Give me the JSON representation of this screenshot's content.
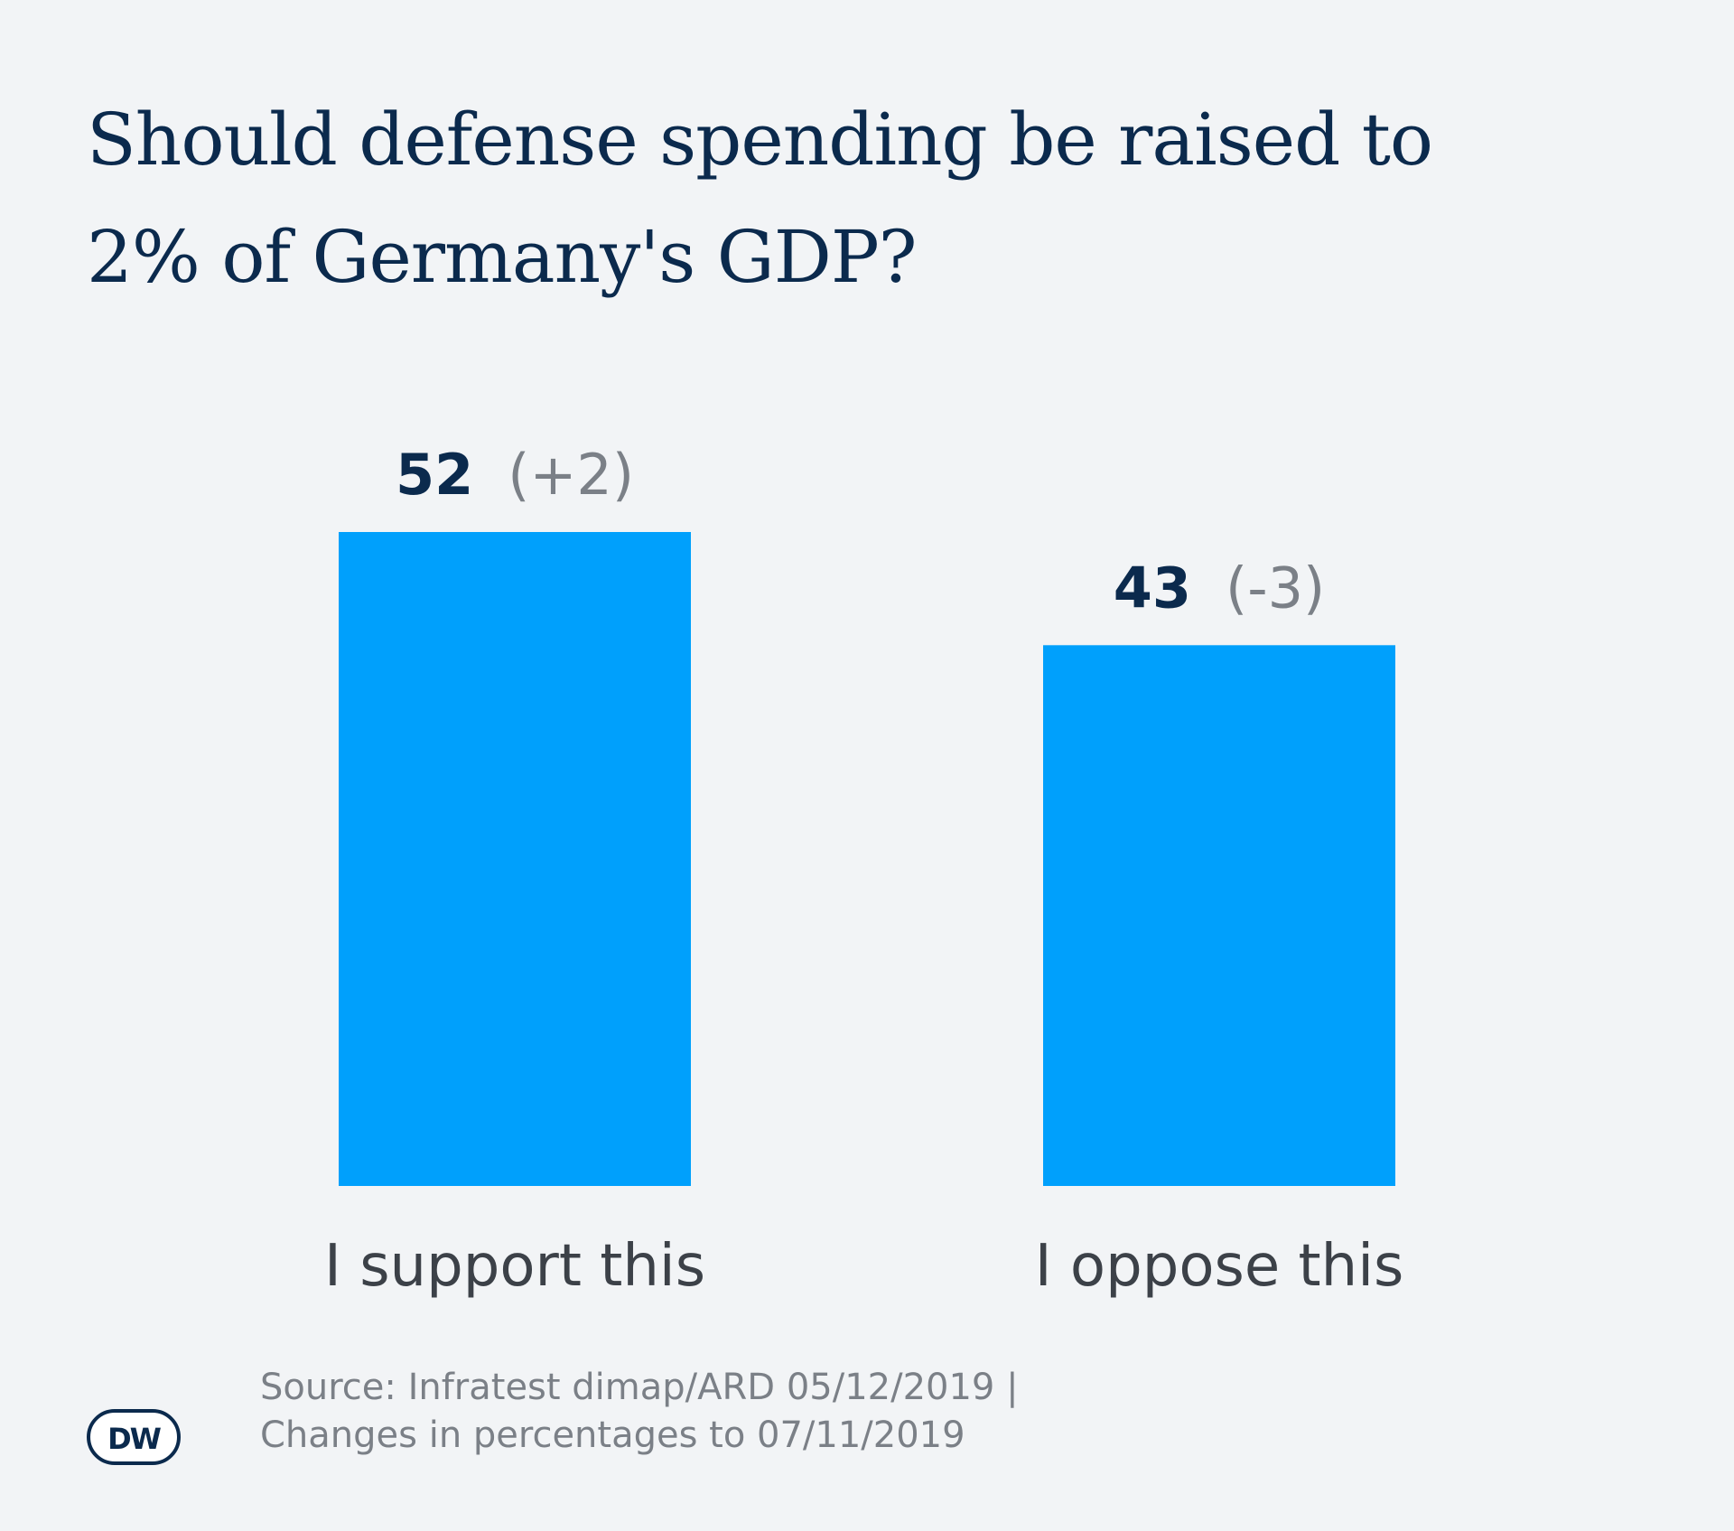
{
  "chart_data": {
    "type": "bar",
    "title_lines": [
      "Should defense spending be raised to",
      "2% of Germany's GDP?"
    ],
    "categories": [
      "I support this",
      "I oppose this"
    ],
    "values": [
      52,
      43
    ],
    "changes": [
      "(+2)",
      "(-3)"
    ],
    "ylim": [
      0,
      52
    ],
    "grid": false,
    "bar_color": "#00a0fc"
  },
  "source": {
    "line1": "Source: Infratest dimap/ARD 05/12/2019 |",
    "line2": "Changes in percentages to 07/11/2019"
  },
  "logo": {
    "text": "DW",
    "icon": "dw-logo-icon"
  }
}
